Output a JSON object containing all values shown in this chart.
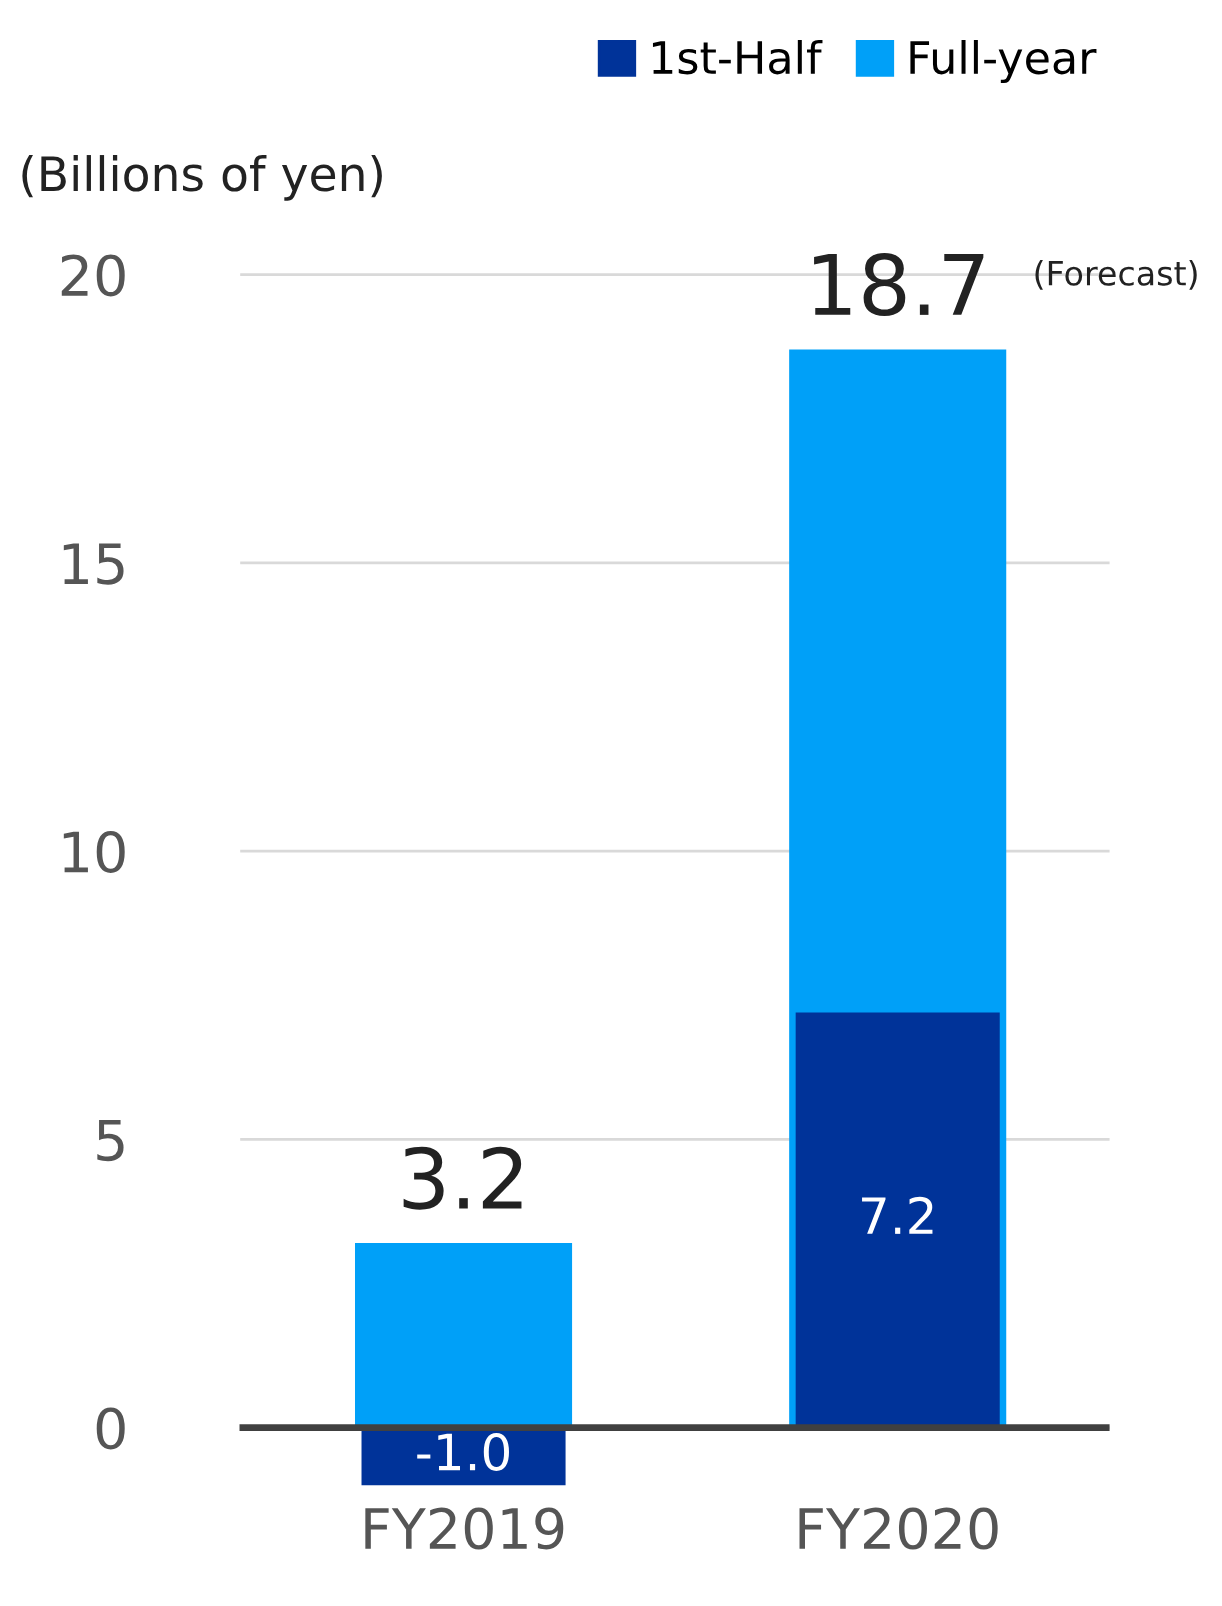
{
  "chart_data": {
    "type": "bar",
    "ylabel": "(Billions of yen)",
    "categories": [
      "FY2019",
      "FY2020"
    ],
    "series": [
      {
        "name": "1st-Half",
        "color": "#003399",
        "values": [
          -1.0,
          7.2
        ],
        "value_labels": [
          "-1.0",
          "7.2"
        ]
      },
      {
        "name": "Full-year",
        "color": "#00a0f8",
        "values": [
          3.2,
          18.7
        ],
        "value_labels": [
          "3.2",
          "18.7"
        ]
      }
    ],
    "ylim": [
      -1.2,
      20.5
    ],
    "yticks": [
      0,
      5,
      10,
      15,
      20
    ],
    "grid": "y",
    "legend": "top right",
    "annotations": [
      "(Forecast)"
    ]
  }
}
